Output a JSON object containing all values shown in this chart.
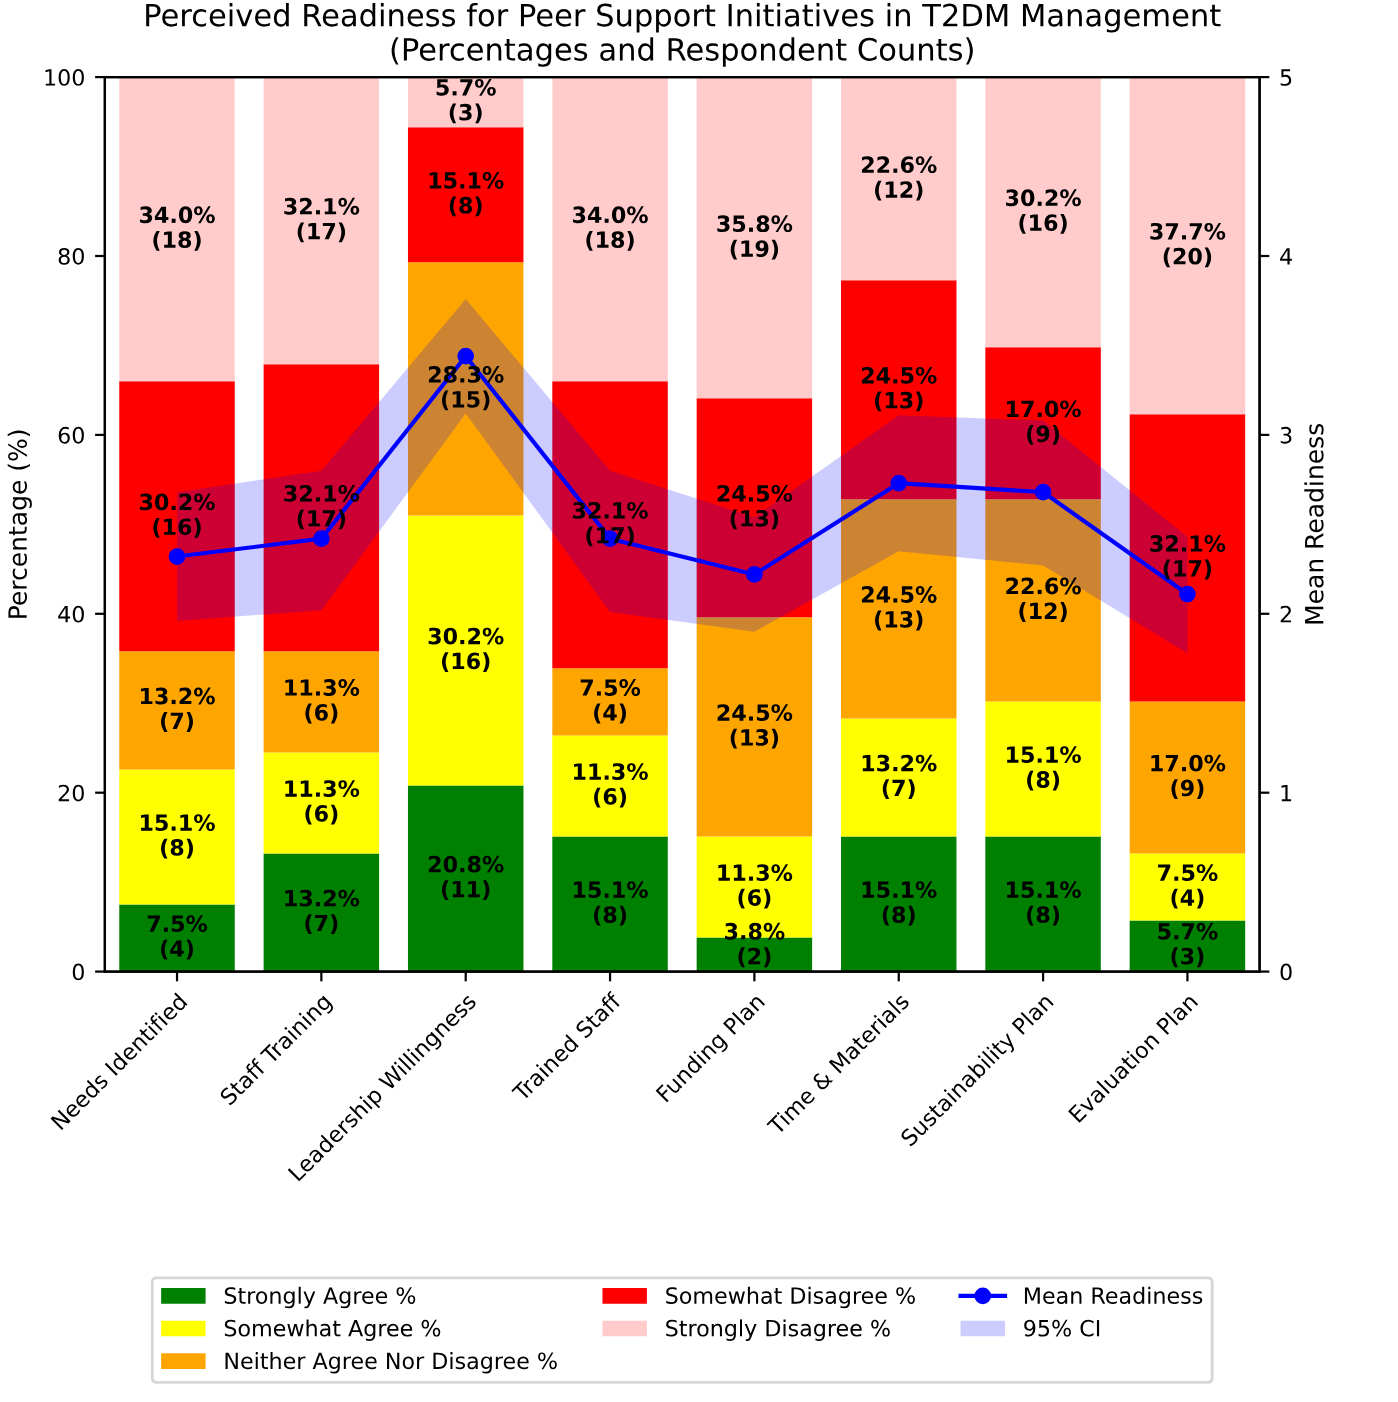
{
  "chart_data": {
    "type": "bar",
    "stacked": true,
    "title": "Perceived Readiness for Peer Support Initiatives in T2DM Management\n(Percentages and Respondent Counts)",
    "ylabel": "Percentage (%)",
    "y2label": "Mean Readiness",
    "categories": [
      "Needs Identified",
      "Staff Training",
      "Leadership Willingness",
      "Trained Staff",
      "Funding Plan",
      "Time & Materials",
      "Sustainability Plan",
      "Evaluation Plan"
    ],
    "ylim": [
      0,
      100
    ],
    "yticks": [
      0,
      20,
      40,
      60,
      80,
      100
    ],
    "y2lim": [
      0,
      5
    ],
    "y2ticks": [
      0,
      1,
      2,
      3,
      4,
      5
    ],
    "grid": false,
    "legend": "bottom",
    "series": [
      {
        "name": "Strongly Agree %",
        "color": "#008000",
        "values": [
          7.5,
          13.2,
          20.8,
          15.1,
          3.8,
          15.1,
          15.1,
          5.7
        ],
        "value_labels": [
          "7.5%\n(4)",
          "13.2%\n(7)",
          "20.8%\n(11)",
          "15.1%\n(8)",
          "3.8%\n(2)",
          "15.1%\n(8)",
          "15.1%\n(8)",
          "5.7%\n(3)"
        ]
      },
      {
        "name": "Somewhat Agree %",
        "color": "#ffff00",
        "values": [
          15.1,
          11.3,
          30.2,
          11.3,
          11.3,
          13.2,
          15.1,
          7.5
        ],
        "value_labels": [
          "15.1%\n(8)",
          "11.3%\n(6)",
          "30.2%\n(16)",
          "11.3%\n(6)",
          "11.3%\n(6)",
          "13.2%\n(7)",
          "15.1%\n(8)",
          "7.5%\n(4)"
        ]
      },
      {
        "name": "Neither Agree Nor Disagree %",
        "color": "#ffa500",
        "values": [
          13.2,
          11.3,
          28.3,
          7.5,
          24.5,
          24.5,
          22.6,
          17.0
        ],
        "value_labels": [
          "13.2%\n(7)",
          "11.3%\n(6)",
          "28.3%\n(15)",
          "7.5%\n(4)",
          "24.5%\n(13)",
          "24.5%\n(13)",
          "22.6%\n(12)",
          "17.0%\n(9)"
        ]
      },
      {
        "name": "Somewhat Disagree %",
        "color": "#ff0000",
        "values": [
          30.2,
          32.1,
          15.1,
          32.1,
          24.5,
          24.5,
          17.0,
          32.1
        ],
        "value_labels": [
          "30.2%\n(16)",
          "32.1%\n(17)",
          "15.1%\n(8)",
          "32.1%\n(17)",
          "24.5%\n(13)",
          "24.5%\n(13)",
          "17.0%\n(9)",
          "32.1%\n(17)"
        ]
      },
      {
        "name": "Strongly Disagree %",
        "color": "#ffcccb",
        "values": [
          34.0,
          32.1,
          5.7,
          34.0,
          35.8,
          22.6,
          30.2,
          37.7
        ],
        "value_labels": [
          "34.0%\n(18)",
          "32.1%\n(17)",
          "5.7%\n(3)",
          "34.0%\n(18)",
          "35.8%\n(19)",
          "22.6%\n(12)",
          "30.2%\n(16)",
          "37.7%\n(20)"
        ]
      },
      {
        "name": "Mean Readiness",
        "type": "line",
        "axis": "y2",
        "color": "#0000ff",
        "marker": "circle",
        "values": [
          2.32,
          2.42,
          3.44,
          2.42,
          2.22,
          2.73,
          2.68,
          2.11
        ],
        "lower": [
          1.96,
          2.02,
          3.12,
          2.01,
          1.9,
          2.35,
          2.27,
          1.78
        ],
        "upper": [
          2.68,
          2.8,
          3.76,
          2.8,
          2.54,
          3.11,
          3.08,
          2.43
        ]
      }
    ],
    "annotations": [
      "95% CI"
    ]
  }
}
